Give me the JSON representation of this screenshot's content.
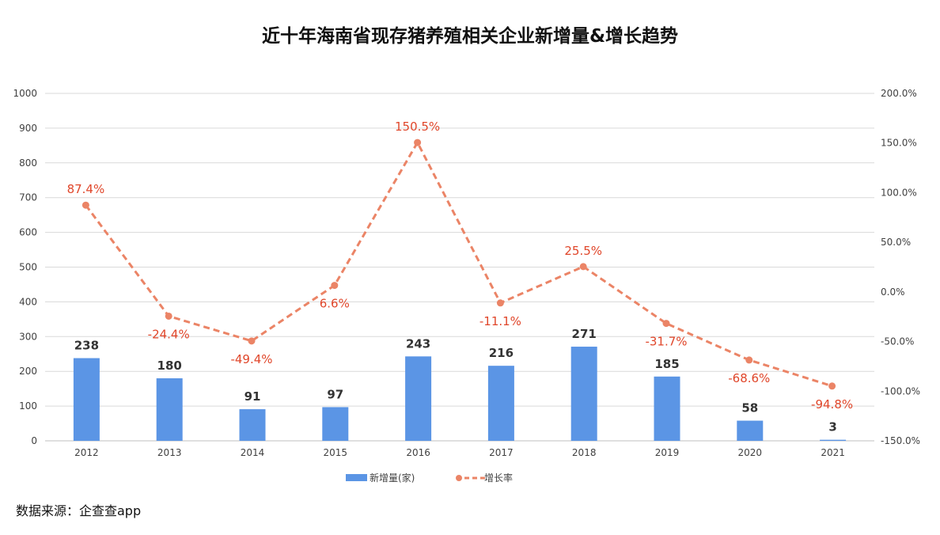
{
  "title": "近十年海南省现存猪养殖相关企业新增量&增长趋势",
  "source": "数据来源：企查查app",
  "colors": {
    "bar": "#5b95e5",
    "line": "#eb8466",
    "rate_label": "#e0462a",
    "grid": "#d9d9d9"
  },
  "chart_data": {
    "type": "bar",
    "categories": [
      "2012",
      "2013",
      "2014",
      "2015",
      "2016",
      "2017",
      "2018",
      "2019",
      "2020",
      "2021"
    ],
    "series": [
      {
        "name": "新增量(家)",
        "type": "bar",
        "axis": "left",
        "values": [
          238,
          180,
          91,
          97,
          243,
          216,
          271,
          185,
          58,
          3
        ],
        "labels": [
          "238",
          "180",
          "91",
          "97",
          "243",
          "216",
          "271",
          "185",
          "58",
          "3"
        ]
      },
      {
        "name": "增长率",
        "type": "line",
        "axis": "right",
        "style": "dashed",
        "marker": "circle",
        "values": [
          87.4,
          -24.4,
          -49.4,
          6.6,
          150.5,
          -11.1,
          25.5,
          -31.7,
          -68.6,
          -94.8
        ],
        "labels": [
          "87.4%",
          "-24.4%",
          "-49.4%",
          "6.6%",
          "150.5%",
          "-11.1%",
          "25.5%",
          "-31.7%",
          "-68.6%",
          "-94.8%"
        ]
      }
    ],
    "y_left": {
      "min": 0,
      "max": 1000,
      "ticks": [
        "0",
        "100",
        "200",
        "300",
        "400",
        "500",
        "600",
        "700",
        "800",
        "900",
        "1000"
      ]
    },
    "y_right": {
      "min": -150,
      "max": 200,
      "ticks": [
        "-150.0%",
        "-100.0%",
        "-50.0%",
        "0.0%",
        "50.0%",
        "100.0%",
        "150.0%",
        "200.0%"
      ]
    },
    "grid": true,
    "legend": {
      "position": "bottom",
      "entries": [
        "新增量(家)",
        "增长率"
      ]
    }
  }
}
